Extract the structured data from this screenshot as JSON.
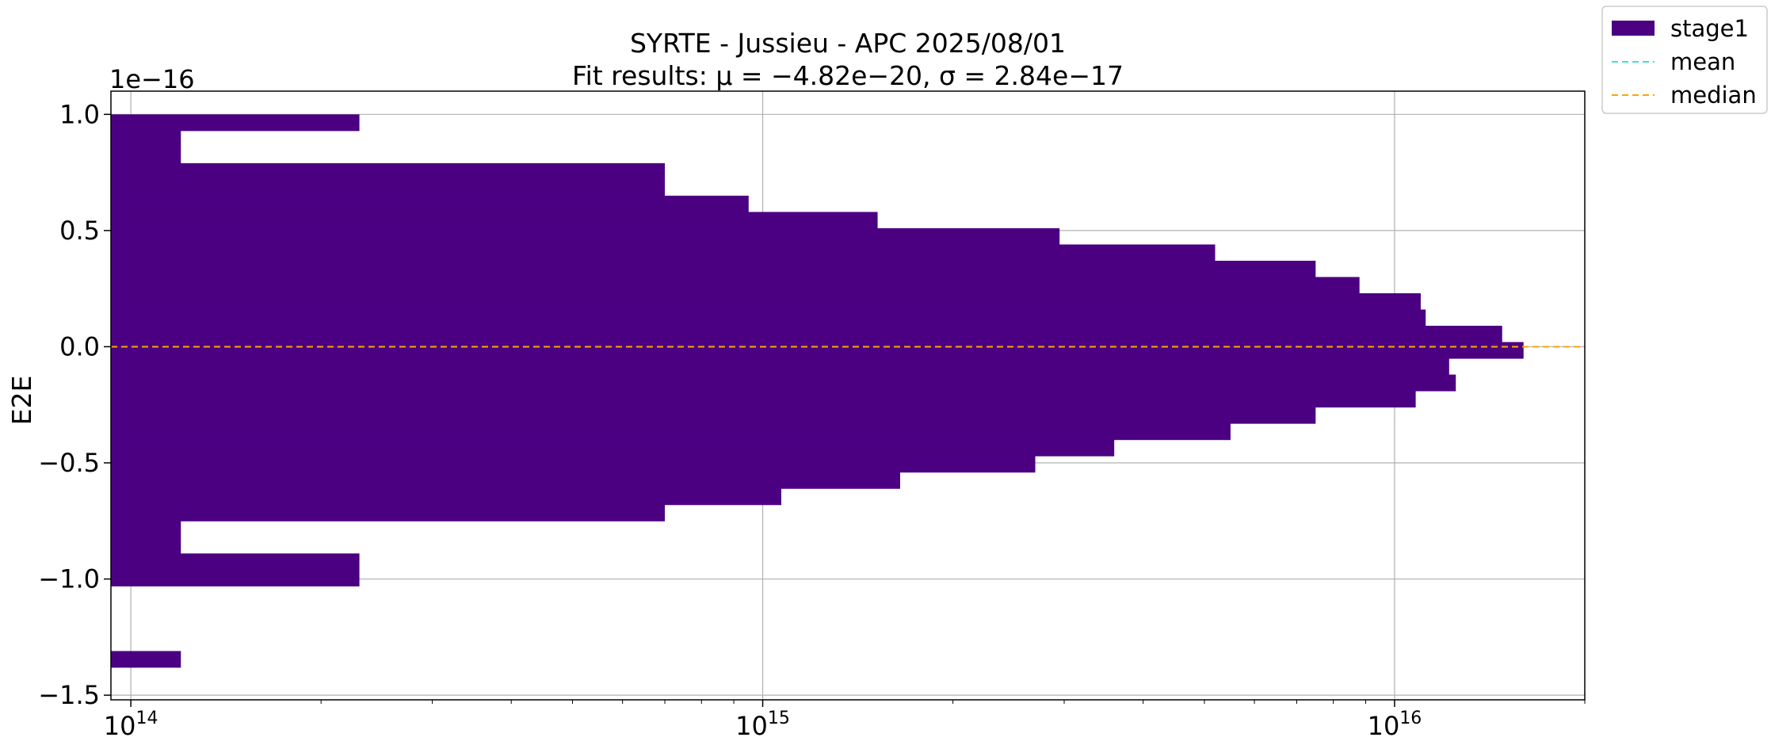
{
  "chart_data": {
    "type": "bar",
    "orientation": "horizontal",
    "title": "SYRTE - Jussieu - APC 2025/08/01",
    "subtitle": "Fit results: μ = −4.82e−20,  σ = 2.84e−17",
    "xlabel": "",
    "ylabel": "E2E",
    "y_offset_label": "1e−16",
    "xscale": "log",
    "xlim": [
      93000000000000.0,
      2e+16
    ],
    "ylim": [
      -1.52,
      1.1
    ],
    "grid": true,
    "legend_position": "outside-top-right",
    "colors": {
      "bars": "#4b0082",
      "mean": "#40e0d0",
      "median": "#ffa500"
    },
    "x_ticks": [
      {
        "value": 100000000000000.0,
        "base": "10",
        "exp": "14"
      },
      {
        "value": 1000000000000000.0,
        "base": "10",
        "exp": "15"
      },
      {
        "value": 1e+16,
        "base": "10",
        "exp": "16"
      }
    ],
    "y_ticks": [
      {
        "value": 1.0,
        "label": "1.0"
      },
      {
        "value": 0.5,
        "label": "0.5"
      },
      {
        "value": 0.0,
        "label": "0.0"
      },
      {
        "value": -0.5,
        "label": "−0.5"
      },
      {
        "value": -1.0,
        "label": "−1.0"
      },
      {
        "value": -1.5,
        "label": "−1.5"
      }
    ],
    "bins": [
      {
        "y0": -1.38,
        "y1": -1.31,
        "count": 120000000000000.0
      },
      {
        "y0": -1.03,
        "y1": -0.89,
        "count": 230000000000000.0
      },
      {
        "y0": -0.89,
        "y1": -0.75,
        "count": 120000000000000.0
      },
      {
        "y0": -0.75,
        "y1": -0.68,
        "count": 700000000000000.0
      },
      {
        "y0": -0.68,
        "y1": -0.61,
        "count": 1070000000000000.0
      },
      {
        "y0": -0.61,
        "y1": -0.54,
        "count": 1650000000000000.0
      },
      {
        "y0": -0.54,
        "y1": -0.47,
        "count": 2700000000000000.0
      },
      {
        "y0": -0.47,
        "y1": -0.4,
        "count": 3600000000000000.0
      },
      {
        "y0": -0.4,
        "y1": -0.33,
        "count": 5500000000000000.0
      },
      {
        "y0": -0.33,
        "y1": -0.26,
        "count": 7500000000000000.0
      },
      {
        "y0": -0.26,
        "y1": -0.19,
        "count": 1.08e+16
      },
      {
        "y0": -0.19,
        "y1": -0.12,
        "count": 1.25e+16
      },
      {
        "y0": -0.12,
        "y1": -0.05,
        "count": 1.22e+16
      },
      {
        "y0": -0.05,
        "y1": 0.02,
        "count": 1.6e+16
      },
      {
        "y0": 0.02,
        "y1": 0.09,
        "count": 1.48e+16
      },
      {
        "y0": 0.09,
        "y1": 0.16,
        "count": 1.12e+16
      },
      {
        "y0": 0.16,
        "y1": 0.23,
        "count": 1.1e+16
      },
      {
        "y0": 0.23,
        "y1": 0.3,
        "count": 8800000000000000.0
      },
      {
        "y0": 0.3,
        "y1": 0.37,
        "count": 7500000000000000.0
      },
      {
        "y0": 0.37,
        "y1": 0.44,
        "count": 5200000000000000.0
      },
      {
        "y0": 0.44,
        "y1": 0.51,
        "count": 2950000000000000.0
      },
      {
        "y0": 0.51,
        "y1": 0.58,
        "count": 1520000000000000.0
      },
      {
        "y0": 0.58,
        "y1": 0.65,
        "count": 950000000000000.0
      },
      {
        "y0": 0.65,
        "y1": 0.79,
        "count": 700000000000000.0
      },
      {
        "y0": 0.79,
        "y1": 0.93,
        "count": 120000000000000.0
      },
      {
        "y0": 0.93,
        "y1": 1.0,
        "count": 230000000000000.0
      }
    ],
    "mean": -0.000482,
    "median": 0.0,
    "legend": [
      {
        "label": "stage1",
        "kind": "bar"
      },
      {
        "label": "mean",
        "kind": "dashed-line"
      },
      {
        "label": "median",
        "kind": "dashed-line"
      }
    ]
  }
}
